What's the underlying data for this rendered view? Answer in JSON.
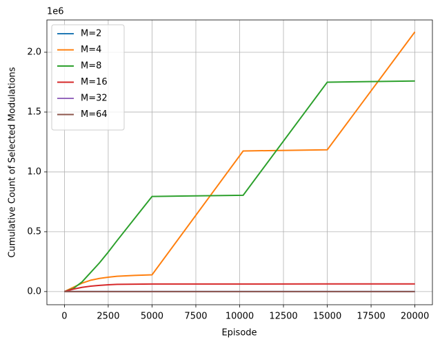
{
  "chart_data": {
    "type": "line",
    "x_label": "Episode",
    "y_label": "Cumulative Count of Selected Modulations",
    "y_offset_label": "1e6",
    "x": [
      0,
      500,
      1000,
      1500,
      2000,
      2500,
      3000,
      4000,
      5000,
      10200,
      15000,
      20000
    ],
    "series": [
      {
        "name": "M=2",
        "color": "#1f77b4",
        "values": [
          0,
          0,
          0,
          0,
          0,
          0,
          0,
          0,
          0,
          0,
          0,
          0
        ]
      },
      {
        "name": "M=4",
        "color": "#ff7f0e",
        "values": [
          0,
          35000,
          70000,
          95000,
          110000,
          120000,
          128000,
          135000,
          140000,
          1175000,
          1185000,
          2170000
        ]
      },
      {
        "name": "M=8",
        "color": "#2ca02c",
        "values": [
          0,
          25000,
          80000,
          160000,
          240000,
          330000,
          425000,
          610000,
          795000,
          805000,
          1750000,
          1760000
        ]
      },
      {
        "name": "M=16",
        "color": "#d62728",
        "values": [
          0,
          20000,
          35000,
          45000,
          52000,
          57000,
          60000,
          62000,
          63000,
          63000,
          64000,
          64000
        ]
      },
      {
        "name": "M=32",
        "color": "#9467bd",
        "values": [
          0,
          0,
          0,
          0,
          0,
          0,
          0,
          0,
          0,
          0,
          0,
          0
        ]
      },
      {
        "name": "M=64",
        "color": "#8c564b",
        "values": [
          0,
          0,
          0,
          0,
          0,
          0,
          0,
          0,
          0,
          0,
          0,
          0
        ]
      }
    ],
    "xlim": [
      -1000,
      21000
    ],
    "xticks": [
      0,
      2500,
      5000,
      7500,
      10000,
      12500,
      15000,
      17500,
      20000
    ],
    "ylim": [
      -110000,
      2270000
    ],
    "yticks": [
      {
        "value": 0,
        "label": "0.0"
      },
      {
        "value": 500000,
        "label": "0.5"
      },
      {
        "value": 1000000,
        "label": "1.0"
      },
      {
        "value": 1500000,
        "label": "1.5"
      },
      {
        "value": 2000000,
        "label": "2.0"
      }
    ],
    "grid": true,
    "legend": "upper-left"
  }
}
